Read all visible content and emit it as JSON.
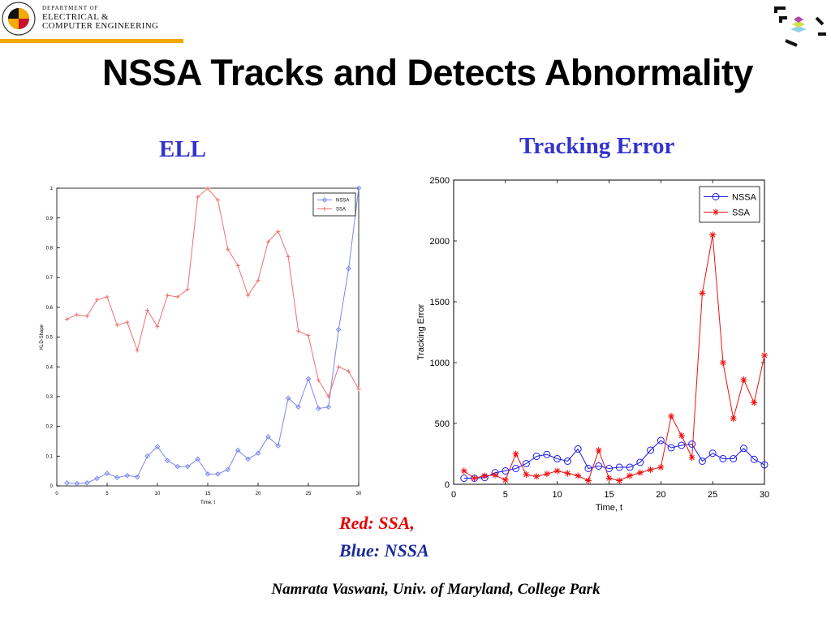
{
  "header": {
    "department_logo": {
      "line1": "DEPARTMENT OF",
      "line2": "ELECTRICAL &",
      "line3": "COMPUTER ENGINEERING",
      "seal_text": "UNIVERSITY OF MARYLAND"
    },
    "colors": {
      "accent_bar": "#f2a900",
      "seal_red": "#c8102e",
      "seal_gold": "#f2a900"
    }
  },
  "slide": {
    "title": "NSSA Tracks and Detects Abnormality",
    "left_heading": "ELL",
    "right_heading": "Tracking Error",
    "note_red": "Red: SSA,",
    "note_blue": "Blue: NSSA",
    "footer": "Namrata Vaswani, Univ. of Maryland, College Park"
  },
  "chart_data": [
    {
      "type": "line",
      "title": "",
      "xlabel": "Time, t",
      "ylabel": "KLD-Shape",
      "xlim": [
        0,
        30
      ],
      "ylim": [
        0,
        1
      ],
      "xticks": [
        0,
        5,
        10,
        15,
        20,
        25,
        30
      ],
      "yticks": [
        0,
        0.1,
        0.2,
        0.3,
        0.4,
        0.5,
        0.6,
        0.7,
        0.8,
        0.9,
        1
      ],
      "grid": false,
      "legend_position": "top-right",
      "x": [
        1,
        2,
        3,
        4,
        5,
        6,
        7,
        8,
        9,
        10,
        11,
        12,
        13,
        14,
        15,
        16,
        17,
        18,
        19,
        20,
        21,
        22,
        23,
        24,
        25,
        26,
        27,
        28,
        29,
        30
      ],
      "series": [
        {
          "name": "NSSA",
          "color": "#7a86ee",
          "marker": "diamond",
          "values": [
            0.01,
            0.008,
            0.01,
            0.025,
            0.042,
            0.028,
            0.035,
            0.03,
            0.1,
            0.132,
            0.085,
            0.065,
            0.065,
            0.09,
            0.04,
            0.04,
            0.055,
            0.12,
            0.09,
            0.11,
            0.165,
            0.135,
            0.295,
            0.265,
            0.36,
            0.26,
            0.265,
            0.525,
            0.73,
            1.0
          ]
        },
        {
          "name": "SSA",
          "color": "#f07070",
          "marker": "plus",
          "values": [
            0.56,
            0.575,
            0.57,
            0.625,
            0.635,
            0.54,
            0.55,
            0.455,
            0.59,
            0.535,
            0.64,
            0.635,
            0.66,
            0.97,
            1.0,
            0.96,
            0.795,
            0.74,
            0.64,
            0.69,
            0.82,
            0.855,
            0.77,
            0.52,
            0.505,
            0.355,
            0.3,
            0.4,
            0.385,
            0.325
          ]
        }
      ]
    },
    {
      "type": "line",
      "title": "",
      "xlabel": "Time, t",
      "ylabel": "Tracking Error",
      "xlim": [
        0,
        30
      ],
      "ylim": [
        0,
        2500
      ],
      "xticks": [
        0,
        5,
        10,
        15,
        20,
        25,
        30
      ],
      "yticks": [
        0,
        500,
        1000,
        1500,
        2000,
        2500
      ],
      "grid": false,
      "legend_position": "top-right",
      "x": [
        1,
        2,
        3,
        4,
        5,
        6,
        7,
        8,
        9,
        10,
        11,
        12,
        13,
        14,
        15,
        16,
        17,
        18,
        19,
        20,
        21,
        22,
        23,
        24,
        25,
        26,
        27,
        28,
        29,
        30
      ],
      "series": [
        {
          "name": "NSSA",
          "color": "#1a1aee",
          "marker": "circle",
          "values": [
            50,
            50,
            55,
            95,
            110,
            130,
            170,
            230,
            245,
            210,
            190,
            290,
            130,
            150,
            130,
            140,
            140,
            180,
            280,
            360,
            300,
            320,
            330,
            190,
            255,
            210,
            210,
            295,
            205,
            160
          ]
        },
        {
          "name": "SSA",
          "color": "#ee1111",
          "marker": "star",
          "values": [
            110,
            50,
            70,
            75,
            35,
            250,
            80,
            65,
            85,
            110,
            90,
            70,
            30,
            280,
            50,
            30,
            70,
            95,
            120,
            140,
            560,
            400,
            220,
            1570,
            2050,
            1000,
            540,
            860,
            670,
            1060
          ]
        }
      ]
    }
  ]
}
